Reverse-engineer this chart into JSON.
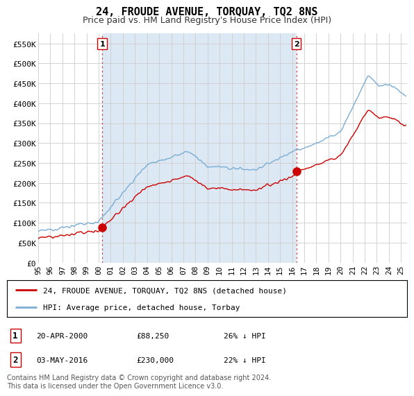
{
  "title": "24, FROUDE AVENUE, TORQUAY, TQ2 8NS",
  "subtitle": "Price paid vs. HM Land Registry's House Price Index (HPI)",
  "ylabel_ticks": [
    "£0",
    "£50K",
    "£100K",
    "£150K",
    "£200K",
    "£250K",
    "£300K",
    "£350K",
    "£400K",
    "£450K",
    "£500K",
    "£550K"
  ],
  "ytick_values": [
    0,
    50000,
    100000,
    150000,
    200000,
    250000,
    300000,
    350000,
    400000,
    450000,
    500000,
    550000
  ],
  "ylim": [
    0,
    575000
  ],
  "xlim_start": 1995.0,
  "xlim_end": 2025.5,
  "sale1_x": 2000.29,
  "sale1_y": 88250,
  "sale1_label": "1",
  "sale2_x": 2016.34,
  "sale2_y": 230000,
  "sale2_label": "2",
  "hpi_color": "#7aadd4",
  "hpi_fill_color": "#dce8f3",
  "price_color": "#cc0000",
  "marker_color": "#cc0000",
  "vline_color": "#cc4444",
  "grid_color": "#cccccc",
  "background_color": "#ffffff",
  "legend_property_label": "24, FROUDE AVENUE, TORQUAY, TQ2 8NS (detached house)",
  "legend_hpi_label": "HPI: Average price, detached house, Torbay",
  "annotation1_date": "20-APR-2000",
  "annotation1_price": "£88,250",
  "annotation1_hpi": "26% ↓ HPI",
  "annotation2_date": "03-MAY-2016",
  "annotation2_price": "£230,000",
  "annotation2_hpi": "22% ↓ HPI",
  "footer": "Contains HM Land Registry data © Crown copyright and database right 2024.\nThis data is licensed under the Open Government Licence v3.0.",
  "title_fontsize": 11,
  "subtitle_fontsize": 9,
  "tick_fontsize": 8,
  "legend_fontsize": 8,
  "annotation_fontsize": 8,
  "footer_fontsize": 7
}
